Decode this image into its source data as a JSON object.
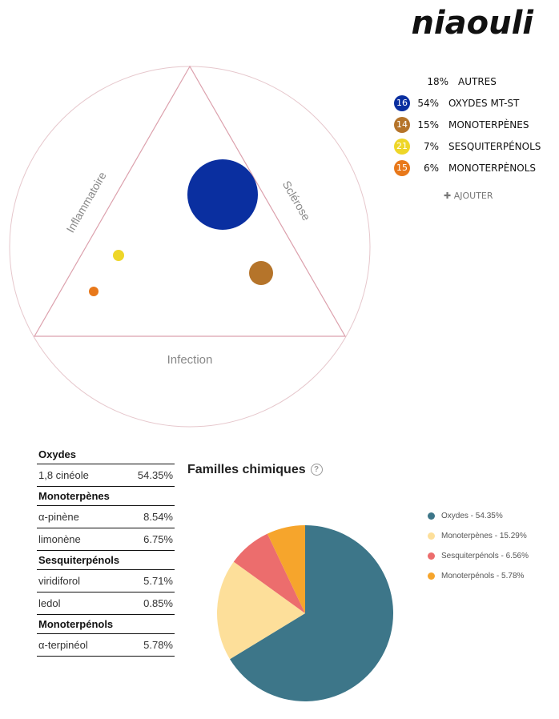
{
  "title": "niaouli",
  "legend": {
    "autres": {
      "pct": "18%",
      "label": "AUTRES"
    },
    "items": [
      {
        "num": "16",
        "pct": "54%",
        "label": "OXYDES MT-ST",
        "color": "#0a2fa0"
      },
      {
        "num": "14",
        "pct": "15%",
        "label": "MONOTERPÈNES",
        "color": "#b5742a"
      },
      {
        "num": "21",
        "pct": "7%",
        "label": "SESQUITERPÉNOLS",
        "color": "#eed628"
      },
      {
        "num": "15",
        "pct": "6%",
        "label": "MONOTERPÈNOLS",
        "color": "#e8781a"
      }
    ]
  },
  "add_label": "AJOUTER",
  "triangle": {
    "left": "Inflammatoire",
    "right": "Sclérose",
    "bottom": "Infection"
  },
  "table": [
    {
      "group": "Oxydes",
      "rows": [
        {
          "name": "1,8 cinéole",
          "value": "54.35%"
        }
      ]
    },
    {
      "group": "Monoterpènes",
      "rows": [
        {
          "name": "α-pinène",
          "value": "8.54%"
        },
        {
          "name": "limonène",
          "value": "6.75%"
        }
      ]
    },
    {
      "group": "Sesquiterpénols",
      "rows": [
        {
          "name": "viridiforol",
          "value": "5.71%"
        },
        {
          "name": "ledol",
          "value": "0.85%"
        }
      ]
    },
    {
      "group": "Monoterpénols",
      "rows": [
        {
          "name": "α-terpinéol",
          "value": "5.78%"
        }
      ]
    }
  ],
  "chart_data": {
    "type": "pie",
    "title": "Familles chimiques",
    "help": "?",
    "categories": [
      "Oxydes",
      "Monoterpènes",
      "Sesquiterpénols",
      "Monoterpénols"
    ],
    "values": [
      54.35,
      15.29,
      6.56,
      5.78
    ],
    "labels": [
      "Oxydes - 54.35%",
      "Monoterpènes - 15.29%",
      "Sesquiterpénols - 6.56%",
      "Monoterpénols - 5.78%"
    ],
    "colors": [
      "#3d7689",
      "#fddf9a",
      "#ec6d6d",
      "#f6a52c"
    ],
    "legend_position": "right"
  }
}
